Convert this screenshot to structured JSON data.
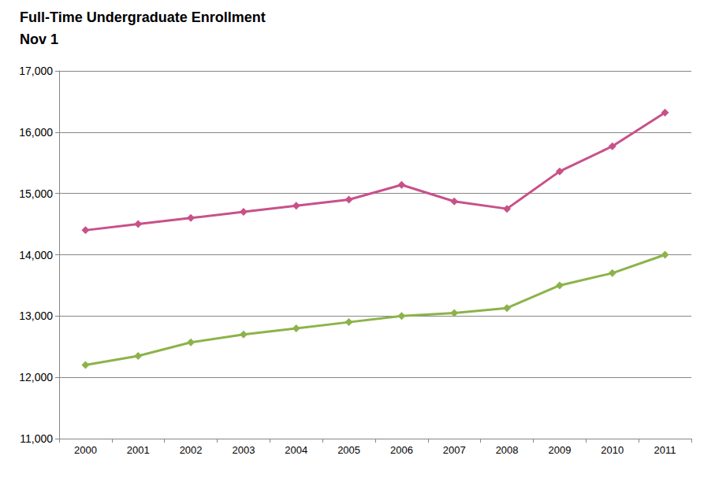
{
  "chart_data": {
    "type": "line",
    "title": "Full-Time Undergraduate Enrollment",
    "subtitle": "Nov 1",
    "categories": [
      "2000",
      "2001",
      "2002",
      "2003",
      "2004",
      "2005",
      "2006",
      "2007",
      "2008",
      "2009",
      "2010",
      "2011"
    ],
    "series": [
      {
        "color": "#c8518a",
        "marker": "diamond",
        "values": [
          14400,
          14500,
          14600,
          14700,
          14800,
          14900,
          15140,
          14870,
          14750,
          15360,
          15770,
          16320
        ]
      },
      {
        "color": "#8cb34a",
        "marker": "diamond",
        "values": [
          12200,
          12350,
          12570,
          12700,
          12800,
          12900,
          13000,
          13050,
          13130,
          13500,
          13700,
          14000
        ]
      }
    ],
    "ylim": [
      11000,
      17000
    ],
    "yticks": [
      {
        "value": 11000,
        "label": "11,000"
      },
      {
        "value": 12000,
        "label": "12,000"
      },
      {
        "value": 13000,
        "label": "13,000"
      },
      {
        "value": 14000,
        "label": "14,000"
      },
      {
        "value": 15000,
        "label": "15,000"
      },
      {
        "value": 16000,
        "label": "16,000"
      },
      {
        "value": 17000,
        "label": "17,000"
      }
    ],
    "grid": true
  }
}
